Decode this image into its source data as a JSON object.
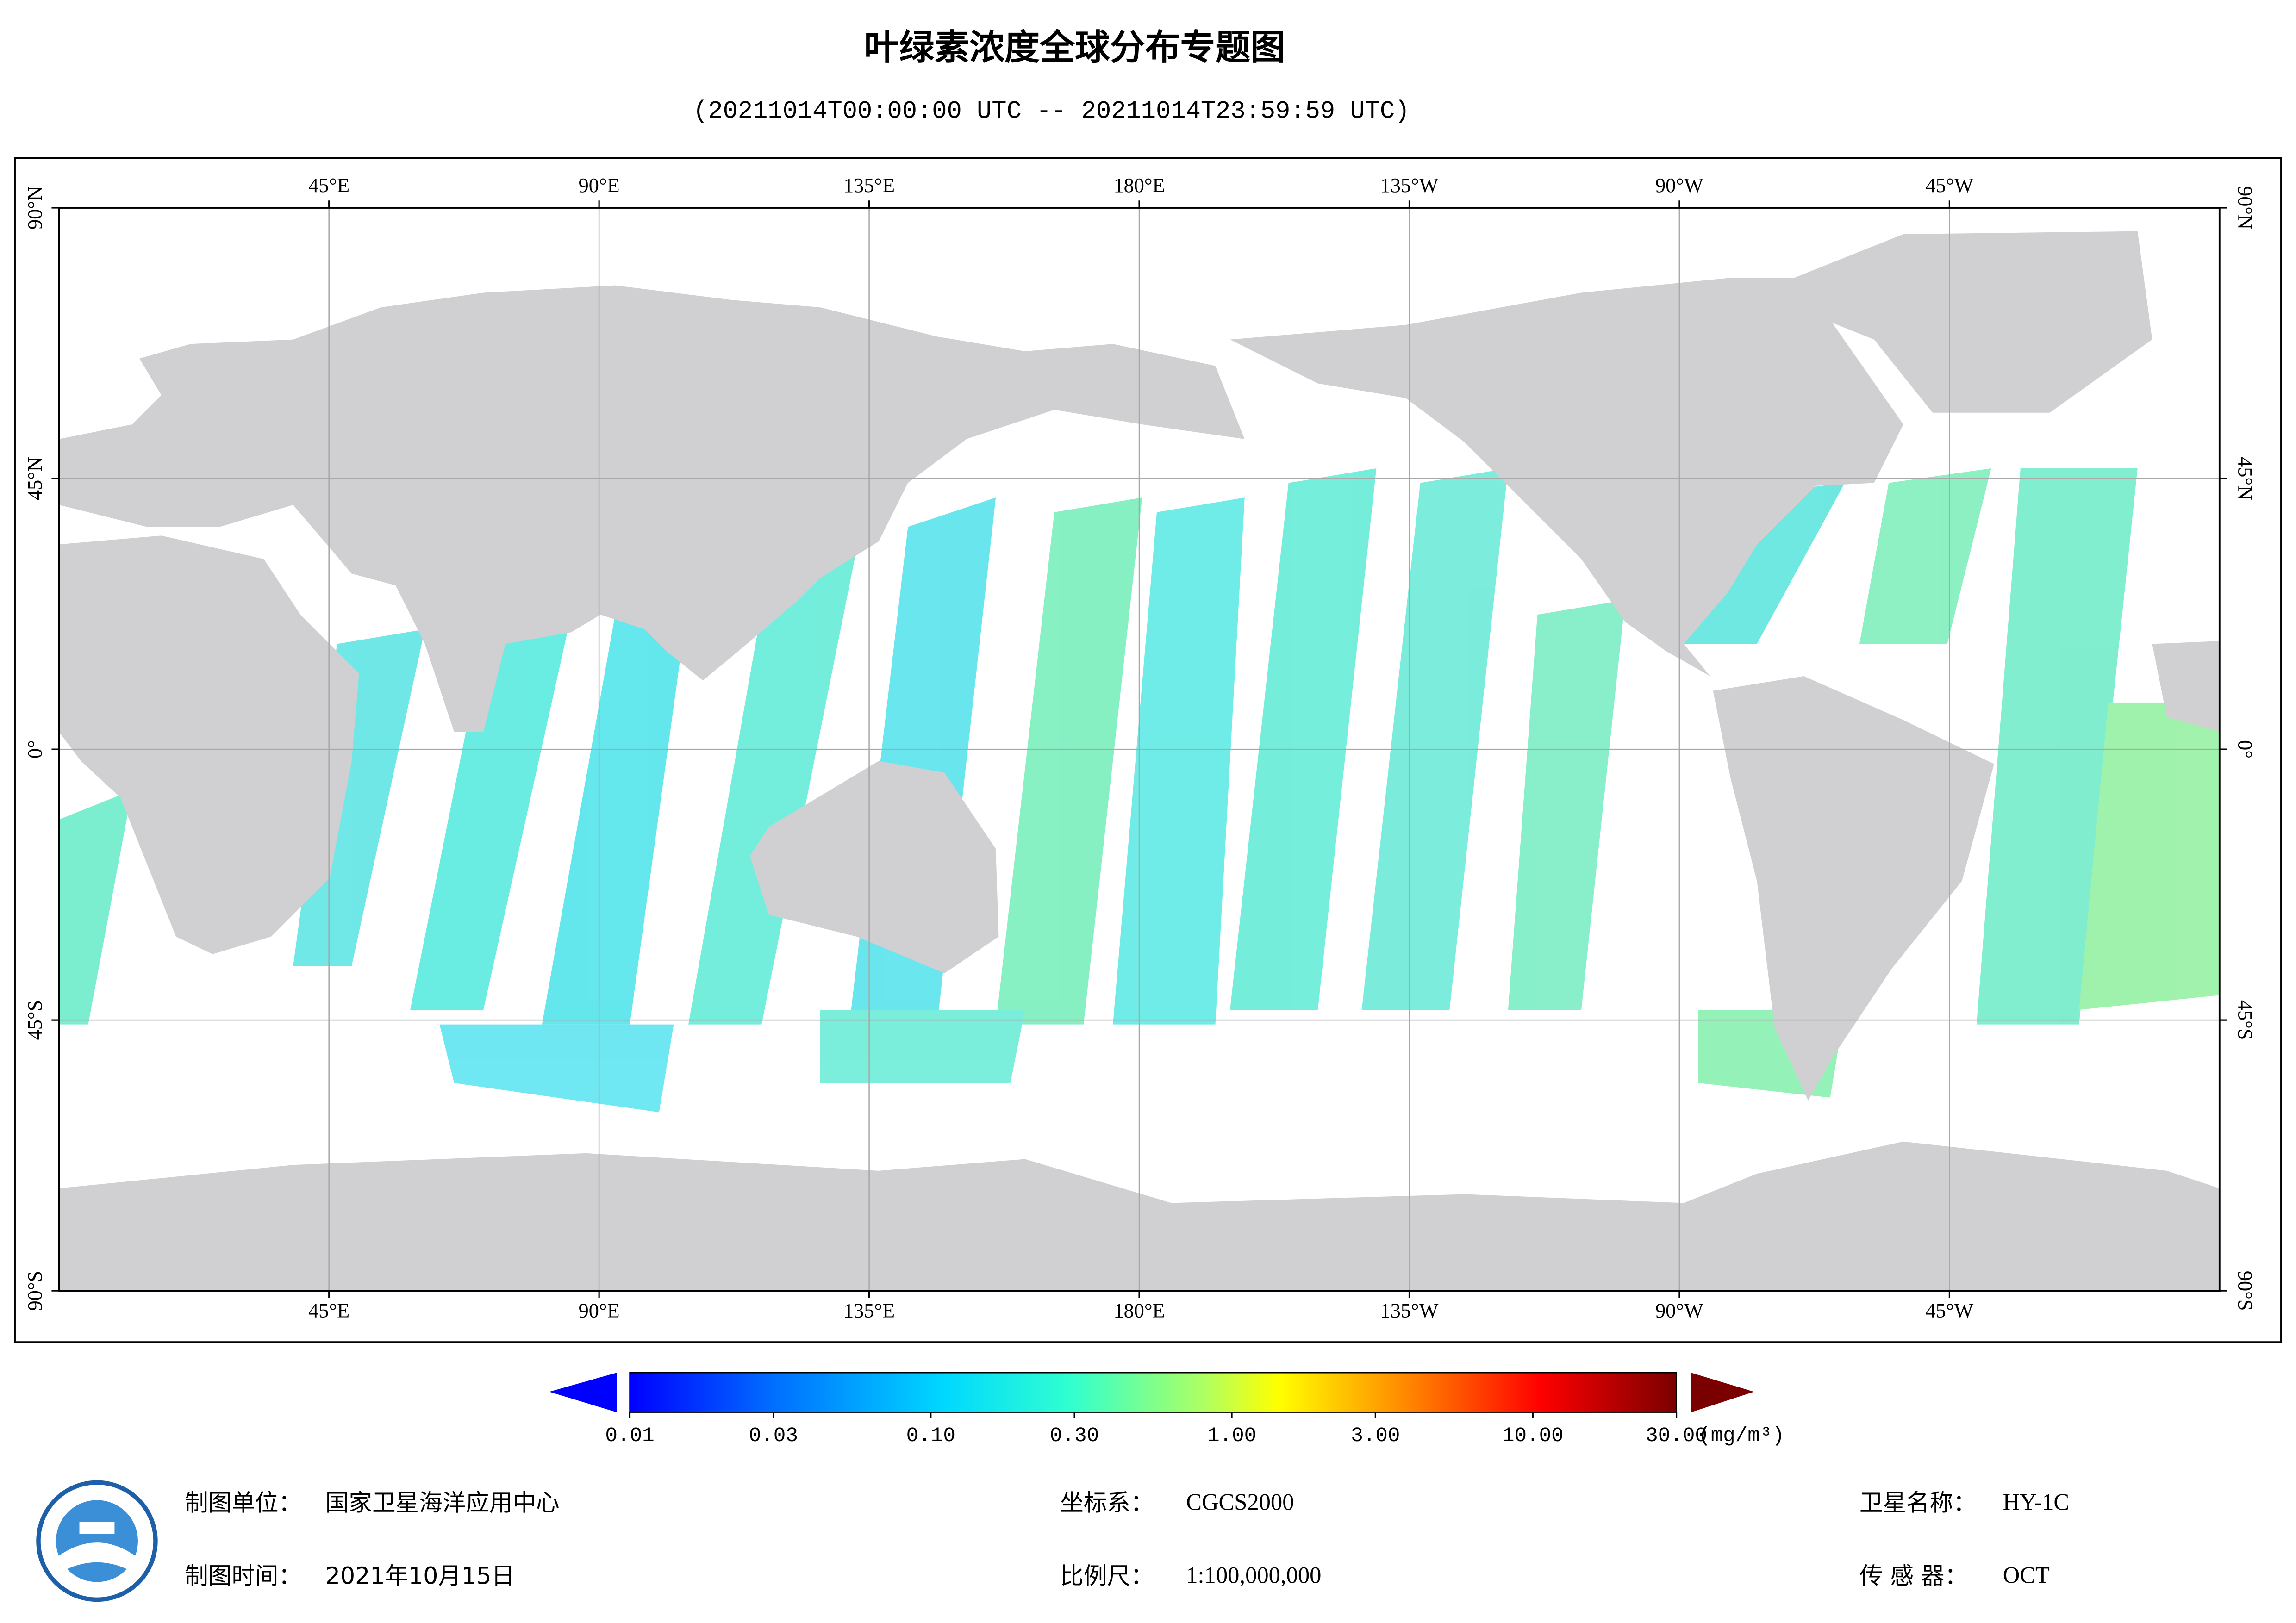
{
  "header": {
    "title": "叶绿素浓度全球分布专题图",
    "subtitle": "(20211014T00:00:00 UTC -- 20211014T23:59:59 UTC)"
  },
  "map": {
    "lon_range": [
      0,
      360
    ],
    "lat_range": [
      -90,
      90
    ],
    "lon_ticks": [
      {
        "value": 45,
        "label": "45°E"
      },
      {
        "value": 90,
        "label": "90°E"
      },
      {
        "value": 135,
        "label": "135°E"
      },
      {
        "value": 180,
        "label": "180°E"
      },
      {
        "value": 225,
        "label": "135°W"
      },
      {
        "value": 270,
        "label": "90°W"
      },
      {
        "value": 315,
        "label": "45°W"
      }
    ],
    "lat_ticks": [
      {
        "value": 90,
        "label": "90°N"
      },
      {
        "value": 45,
        "label": "45°N"
      },
      {
        "value": 0,
        "label": "0°"
      },
      {
        "value": -45,
        "label": "45°S"
      },
      {
        "value": -90,
        "label": "90°S"
      }
    ]
  },
  "colorbar": {
    "scale": "log",
    "range": [
      0.01,
      30
    ],
    "ticks": [
      {
        "value": 0.01,
        "label": "0.01"
      },
      {
        "value": 0.03,
        "label": "0.03"
      },
      {
        "value": 0.1,
        "label": "0.10"
      },
      {
        "value": 0.3,
        "label": "0.30"
      },
      {
        "value": 1,
        "label": "1.00"
      },
      {
        "value": 3,
        "label": "3.00"
      },
      {
        "value": 10,
        "label": "10.00"
      },
      {
        "value": 30,
        "label": "30.00"
      }
    ],
    "unit": "(mg/m³)"
  },
  "footer": {
    "producer": {
      "label": "制图单位：",
      "value": "国家卫星海洋应用中心"
    },
    "date": {
      "label": "制图时间：",
      "value": "2021年10月15日"
    },
    "crs": {
      "label": "坐标系：",
      "value": "CGCS2000"
    },
    "scale": {
      "label": "比例尺：",
      "value": "1:100,000,000"
    },
    "satellite": {
      "label": "卫星名称：",
      "value": "HY-1C"
    },
    "sensor": {
      "label": "传 感 器：",
      "value": "OCT"
    }
  }
}
